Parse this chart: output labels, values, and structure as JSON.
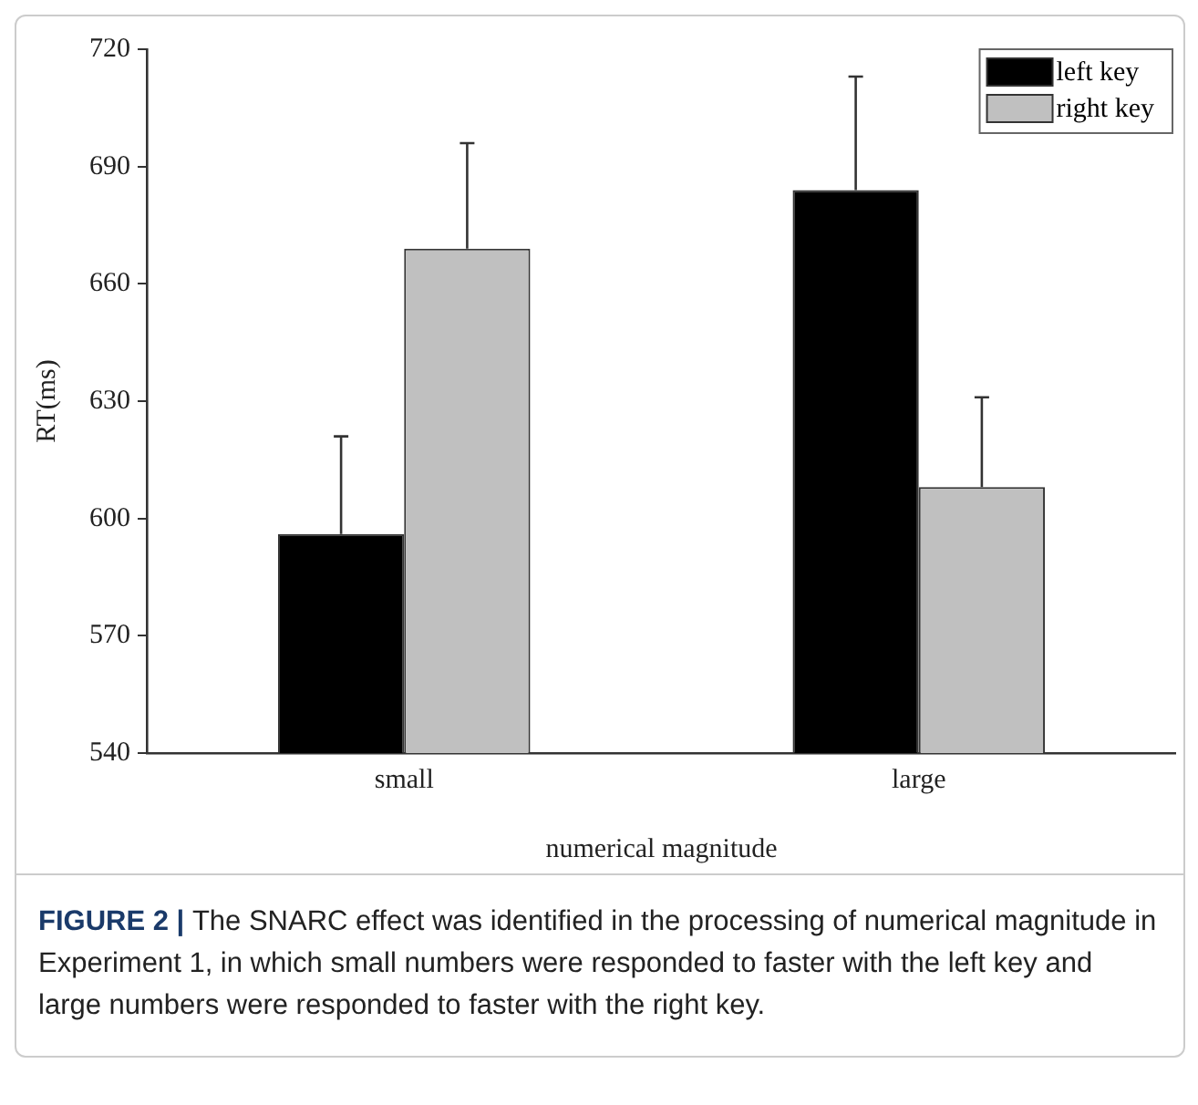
{
  "chart_data": {
    "type": "bar",
    "ylabel": "RT(ms)",
    "xlabel": "numerical magnitude",
    "categories": [
      "small",
      "large"
    ],
    "series": [
      {
        "name": "left key",
        "color": "#000000",
        "values": [
          596,
          684
        ],
        "errors": [
          25,
          29
        ]
      },
      {
        "name": "right key",
        "color": "#c0c0c0",
        "values": [
          669,
          608
        ],
        "errors": [
          27,
          23
        ]
      }
    ],
    "ylim": [
      540,
      720
    ],
    "yticks": [
      540,
      570,
      600,
      630,
      660,
      690,
      720
    ],
    "grid": false,
    "legend": "top right",
    "annotations": [
      "FIGURE 2 |",
      "The SNARC effect was identified in the processing of numerical magnitude in Experiment 1, in which small numbers were responded to faster with the left key and large numbers were responded to faster with the right key."
    ]
  }
}
